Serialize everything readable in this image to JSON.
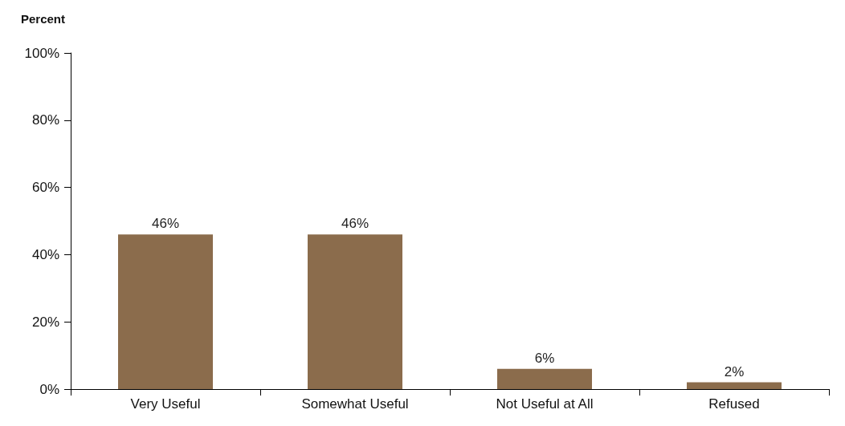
{
  "chart_data": {
    "type": "bar",
    "ylabel": "Percent",
    "categories": [
      "Very Useful",
      "Somewhat Useful",
      "Not Useful at All",
      "Refused"
    ],
    "values": [
      46,
      46,
      6,
      2
    ],
    "value_labels": [
      "46%",
      "46%",
      "6%",
      "2%"
    ],
    "color": "#8b6c4c",
    "ylim": [
      0,
      100
    ],
    "yticks": [
      {
        "value": 0,
        "label": "0%"
      },
      {
        "value": 20,
        "label": "20%"
      },
      {
        "value": 40,
        "label": "40%"
      },
      {
        "value": 60,
        "label": "60%"
      },
      {
        "value": 80,
        "label": "80%"
      },
      {
        "value": 100,
        "label": "100%"
      }
    ]
  }
}
